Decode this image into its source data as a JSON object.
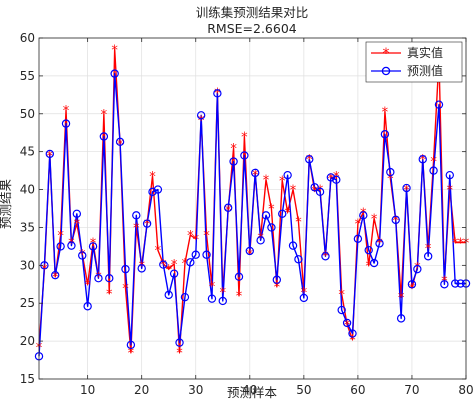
{
  "chart_data": {
    "type": "line",
    "title": "训练集预测结果对比",
    "subtitle": "RMSE=2.6604",
    "xlabel": "预测样本",
    "ylabel": "预测结果",
    "xlim": [
      1,
      80
    ],
    "ylim": [
      15,
      60
    ],
    "xticks": [
      10,
      20,
      30,
      40,
      50,
      60,
      70,
      80
    ],
    "yticks": [
      15,
      20,
      25,
      30,
      35,
      40,
      45,
      50,
      55,
      60
    ],
    "grid": true,
    "legend_position": "top-right",
    "x": [
      1,
      2,
      3,
      4,
      5,
      6,
      7,
      8,
      9,
      10,
      11,
      12,
      13,
      14,
      15,
      16,
      17,
      18,
      19,
      20,
      21,
      22,
      23,
      24,
      25,
      26,
      27,
      28,
      29,
      30,
      31,
      32,
      33,
      34,
      35,
      36,
      37,
      38,
      39,
      40,
      41,
      42,
      43,
      44,
      45,
      46,
      47,
      48,
      49,
      50,
      51,
      52,
      53,
      54,
      55,
      56,
      57,
      58,
      59,
      60,
      61,
      62,
      63,
      64,
      65,
      66,
      67,
      68,
      69,
      70,
      71,
      72,
      73,
      74,
      75,
      76,
      77,
      78,
      79,
      80
    ],
    "series": [
      {
        "name": "真实值",
        "color": "#ff0000",
        "marker": "asterisk",
        "values": [
          19.2,
          29.5,
          44.5,
          28.5,
          34.0,
          50.5,
          33.0,
          35.5,
          31.5,
          27.5,
          33.0,
          28.5,
          50.0,
          26.3,
          58.5,
          46.0,
          27.0,
          18.5,
          35.0,
          30.0,
          35.5,
          41.8,
          32.0,
          30.2,
          29.5,
          30.2,
          18.5,
          30.3,
          34.0,
          33.5,
          49.2,
          34.0,
          27.3,
          52.8,
          26.5,
          37.3,
          45.5,
          26.0,
          47.0,
          31.5,
          42.0,
          33.7,
          41.3,
          37.5,
          27.2,
          41.2,
          37.0,
          40.0,
          35.8,
          26.5,
          44.0,
          39.8,
          40.0,
          31.3,
          41.5,
          41.8,
          26.2,
          22.2,
          20.2,
          35.5,
          37.0,
          30.0,
          36.2,
          33.0,
          50.3,
          41.5,
          36.0,
          25.8,
          40.0,
          27.0,
          29.8,
          44.0,
          32.3,
          43.8,
          57.2,
          28.0,
          40.0,
          33.0,
          33.0,
          33.0
        ]
      },
      {
        "name": "预测值",
        "color": "#0000ff",
        "marker": "circle",
        "values": [
          18.0,
          30.0,
          44.7,
          28.7,
          32.5,
          48.7,
          32.6,
          36.8,
          31.3,
          24.6,
          32.5,
          28.3,
          47.0,
          28.3,
          55.3,
          46.3,
          29.5,
          19.5,
          36.6,
          29.6,
          35.5,
          39.7,
          40.0,
          30.1,
          26.1,
          28.9,
          19.8,
          25.8,
          30.4,
          31.4,
          49.8,
          31.4,
          25.6,
          52.7,
          25.3,
          37.6,
          43.7,
          28.5,
          44.5,
          31.9,
          42.2,
          33.3,
          36.6,
          35.0,
          28.1,
          36.8,
          41.9,
          32.6,
          30.8,
          25.7,
          44.0,
          40.3,
          39.7,
          31.2,
          41.6,
          41.3,
          24.1,
          22.4,
          21.0,
          33.5,
          36.6,
          32.0,
          30.3,
          32.9,
          47.3,
          42.3,
          36.0,
          23.0,
          40.2,
          27.5,
          29.5,
          44.0,
          31.2,
          42.5,
          51.2,
          27.5,
          41.9,
          27.6,
          27.6,
          27.6
        ]
      }
    ]
  }
}
